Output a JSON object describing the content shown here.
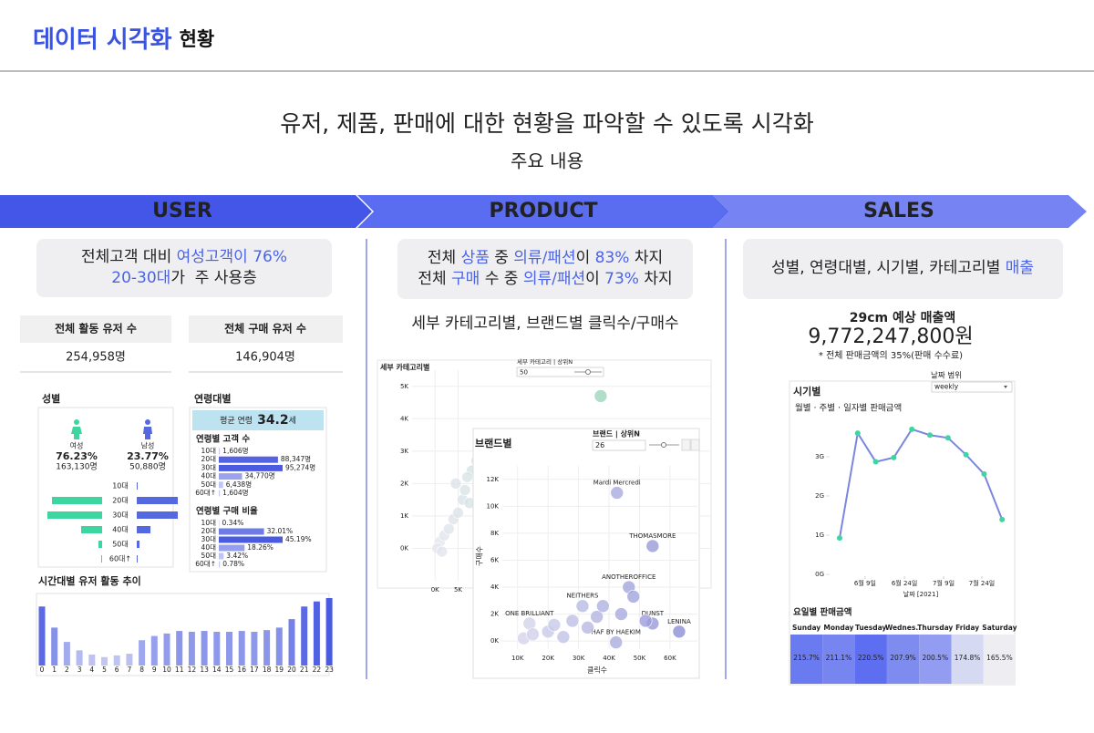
{
  "header": {
    "title": "데이터 시각화",
    "title_suffix": "현황"
  },
  "intro": {
    "title": "유저, 제품, 판매에 대한 현황을 파악할 수 있도록 시각화",
    "subtitle": "주요 내용"
  },
  "sections": [
    "USER",
    "PRODUCT",
    "SALES"
  ],
  "user": {
    "summary": [
      [
        {
          "text": "전체고객 대비 ",
          "highlight": false
        },
        {
          "text": "여성고객이 76%",
          "highlight": true
        }
      ],
      [
        {
          "text": "20-30대",
          "highlight": true
        },
        {
          "text": "가  주 사용층",
          "highlight": false
        }
      ]
    ],
    "kpis": [
      {
        "label": "전체 활동 유저 수",
        "value": "254,958명"
      },
      {
        "label": "전체 구매 유저 수",
        "value": "146,904명"
      }
    ],
    "gender": {
      "title": "성별",
      "groups": [
        {
          "name": "여성",
          "share": "76.23%",
          "count": "163,130명",
          "color": "#3dd6a0"
        },
        {
          "name": "남성",
          "share": "23.77%",
          "count": "50,880명",
          "color": "#5468e0"
        }
      ],
      "categories": [
        "10대",
        "20대",
        "30대",
        "40대",
        "50대",
        "60대↑"
      ],
      "female": [
        0,
        55,
        60,
        23,
        4,
        1
      ],
      "male": [
        1,
        45,
        45,
        15,
        3,
        1
      ]
    },
    "age": {
      "title": "연령대별",
      "avg_label": "평균 연령",
      "avg_value": 34.2,
      "avg_unit": "세",
      "customers": {
        "title": "연령별 고객 수",
        "categories": [
          "10대",
          "20대",
          "30대",
          "40대",
          "50대",
          "60대↑"
        ],
        "values": [
          1606,
          88347,
          95274,
          34770,
          6438,
          1604
        ],
        "value_labels": [
          "1,606명",
          "88,347명",
          "95,274명",
          "34,770명",
          "6,438명",
          "1,604명"
        ]
      },
      "purchase": {
        "title": "연령별 구매 비율",
        "categories": [
          "10대",
          "20대",
          "30대",
          "40대",
          "50대",
          "60대↑"
        ],
        "values": [
          0.34,
          32.01,
          45.19,
          18.26,
          3.42,
          0.78
        ],
        "value_labels": [
          "0.34%",
          "32.01%",
          "45.19%",
          "18.26%",
          "3.42%",
          "0.78%"
        ]
      }
    },
    "hourly": {
      "title": "시간대별 유저 활동 추이",
      "categories": [
        0,
        1,
        2,
        3,
        4,
        5,
        6,
        7,
        8,
        9,
        10,
        11,
        12,
        13,
        14,
        15,
        16,
        17,
        18,
        19,
        20,
        21,
        22,
        23
      ],
      "values": [
        70,
        45,
        28,
        18,
        13,
        10,
        12,
        14,
        30,
        35,
        38,
        41,
        40,
        41,
        40,
        40,
        41,
        40,
        42,
        45,
        55,
        70,
        76,
        80
      ]
    }
  },
  "product": {
    "summary": [
      [
        {
          "text": "전체 ",
          "highlight": false
        },
        {
          "text": "상품",
          "highlight": true
        },
        {
          "text": " 중 ",
          "highlight": false
        },
        {
          "text": "의류/패션",
          "highlight": true
        },
        {
          "text": "이 ",
          "highlight": false
        },
        {
          "text": "83%",
          "highlight": true
        },
        {
          "text": " 차지",
          "highlight": false
        }
      ],
      [
        {
          "text": "전체 ",
          "highlight": false
        },
        {
          "text": "구매",
          "highlight": true
        },
        {
          "text": " 수 중 ",
          "highlight": false
        },
        {
          "text": "의류/패션",
          "highlight": true
        },
        {
          "text": "이 ",
          "highlight": false
        },
        {
          "text": "73%",
          "highlight": true
        },
        {
          "text": " 차지",
          "highlight": false
        }
      ]
    ],
    "subtitle": "세부 카테고리별, 브랜드별 클릭수/구매수",
    "category_chart": {
      "type": "scatter",
      "title": "세부 카테고리별",
      "filter_label": "세부 카테고리 | 상위N",
      "filter_value": "50",
      "color": "#9fd4bb",
      "xlim": [
        -5000,
        60000
      ],
      "ylim": [
        -1000,
        5500
      ],
      "xticks": [
        {
          "value": 0,
          "label": "0K"
        },
        {
          "value": 5000,
          "label": "5K"
        }
      ],
      "yticks": [
        {
          "value": 0,
          "label": "0K"
        },
        {
          "value": 1000,
          "label": "1K"
        },
        {
          "value": 2000,
          "label": "2K"
        },
        {
          "value": 3000,
          "label": "3K"
        },
        {
          "value": 4000,
          "label": "4K"
        },
        {
          "value": 5000,
          "label": "5K"
        }
      ],
      "x": [
        36000,
        1000,
        500,
        2000,
        3000,
        1500,
        4000,
        5000,
        6000,
        7500,
        8000,
        7000,
        9000,
        4500,
        6500
      ],
      "y": [
        4700,
        200,
        0,
        400,
        600,
        -100,
        900,
        1100,
        1500,
        1400,
        2400,
        2200,
        2700,
        2000,
        1800
      ]
    },
    "brand_chart": {
      "type": "scatter",
      "title": "브랜드별",
      "filter_label": "브랜드 | 상위N",
      "filter_value": "26",
      "x_label": "클릭수",
      "y_label": "구매수",
      "color": "#8c8fd6",
      "xlim": [
        5000,
        69000
      ],
      "ylim": [
        -600,
        13000
      ],
      "xticks": [
        {
          "value": 10000,
          "label": "10K"
        },
        {
          "value": 20000,
          "label": "20K"
        },
        {
          "value": 30000,
          "label": "30K"
        },
        {
          "value": 40000,
          "label": "40K"
        },
        {
          "value": 50000,
          "label": "50K"
        },
        {
          "value": 60000,
          "label": "60K"
        }
      ],
      "yticks": [
        {
          "value": 0,
          "label": "0K"
        },
        {
          "value": 2000,
          "label": "2K"
        },
        {
          "value": 4000,
          "label": "4K"
        },
        {
          "value": 6000,
          "label": "6K"
        },
        {
          "value": 8000,
          "label": "8K"
        },
        {
          "value": 10000,
          "label": "10K"
        },
        {
          "value": 12000,
          "label": "12K"
        }
      ],
      "labels": [
        "Mardi Mercredi",
        "THOMASMORE",
        "ANOTHEROFFICE",
        "NEITHERS",
        "DUNST",
        "LENINA",
        "ONE BRILLIANT",
        "HAF BY HAEKIM",
        null,
        null,
        null,
        null,
        null,
        null,
        null,
        null,
        null,
        null,
        null,
        null
      ],
      "x": [
        42600,
        54300,
        46500,
        31300,
        54300,
        63000,
        13900,
        42300,
        12000,
        15000,
        20000,
        22000,
        25000,
        28000,
        33000,
        36000,
        38000,
        44000,
        48000,
        52000
      ],
      "y": [
        11000,
        7050,
        4000,
        2600,
        1300,
        700,
        1300,
        -100,
        200,
        500,
        700,
        1200,
        300,
        1500,
        1000,
        1800,
        2600,
        2000,
        3300,
        1500
      ]
    }
  },
  "sales": {
    "summary": [
      [
        {
          "text": "성별, 연령대별, 시기별, 카테고리별 ",
          "highlight": false
        },
        {
          "text": "매출",
          "highlight": true
        }
      ]
    ],
    "kpi": {
      "label": "29cm 예상 매출액",
      "value": "9,772,247,800원",
      "note": "* 전체 판매금액의 35%(판매 수수료)"
    },
    "time_chart": {
      "type": "line",
      "section_title": "시기별",
      "filter_label": "날짜 범위",
      "filter_value": "weekly",
      "title": "월별 · 주별 · 일자별 판매금액",
      "x_label": "날짜 [2021]",
      "color": "#7b86e0",
      "marker_color": "#3dd6a0",
      "categories": [
        null,
        null,
        null,
        null,
        null,
        null,
        null,
        null,
        null,
        null
      ],
      "values": [
        930000000,
        3600000000,
        2870000000,
        2980000000,
        3700000000,
        3550000000,
        3480000000,
        3050000000,
        2560000000,
        1400000000
      ],
      "ylim": [
        -230000000,
        4300000000
      ],
      "yticks": [
        {
          "value": 0,
          "label": "0G"
        },
        {
          "value": 1000000000,
          "label": "1G"
        },
        {
          "value": 2000000000,
          "label": "2G"
        },
        {
          "value": 3000000000,
          "label": "3G"
        }
      ],
      "xticks": [
        {
          "value": 1.41,
          "label": "6월 9일"
        },
        {
          "value": 3.59,
          "label": "6월 24일"
        },
        {
          "value": 5.76,
          "label": "7월 9일"
        },
        {
          "value": 7.88,
          "label": "7월 24일"
        }
      ]
    },
    "weekday": {
      "title": "요일별 판매금액",
      "categories": [
        "Sunday",
        "Monday",
        "Tuesday",
        "Wednes..",
        "Thursday",
        "Friday",
        "Saturday"
      ],
      "values": [
        215.7,
        211.1,
        220.5,
        207.9,
        200.5,
        174.8,
        165.5
      ],
      "value_labels": [
        "215.7%",
        "211.1%",
        "220.5%",
        "207.9%",
        "200.5%",
        "174.8%",
        "165.5%"
      ]
    }
  }
}
